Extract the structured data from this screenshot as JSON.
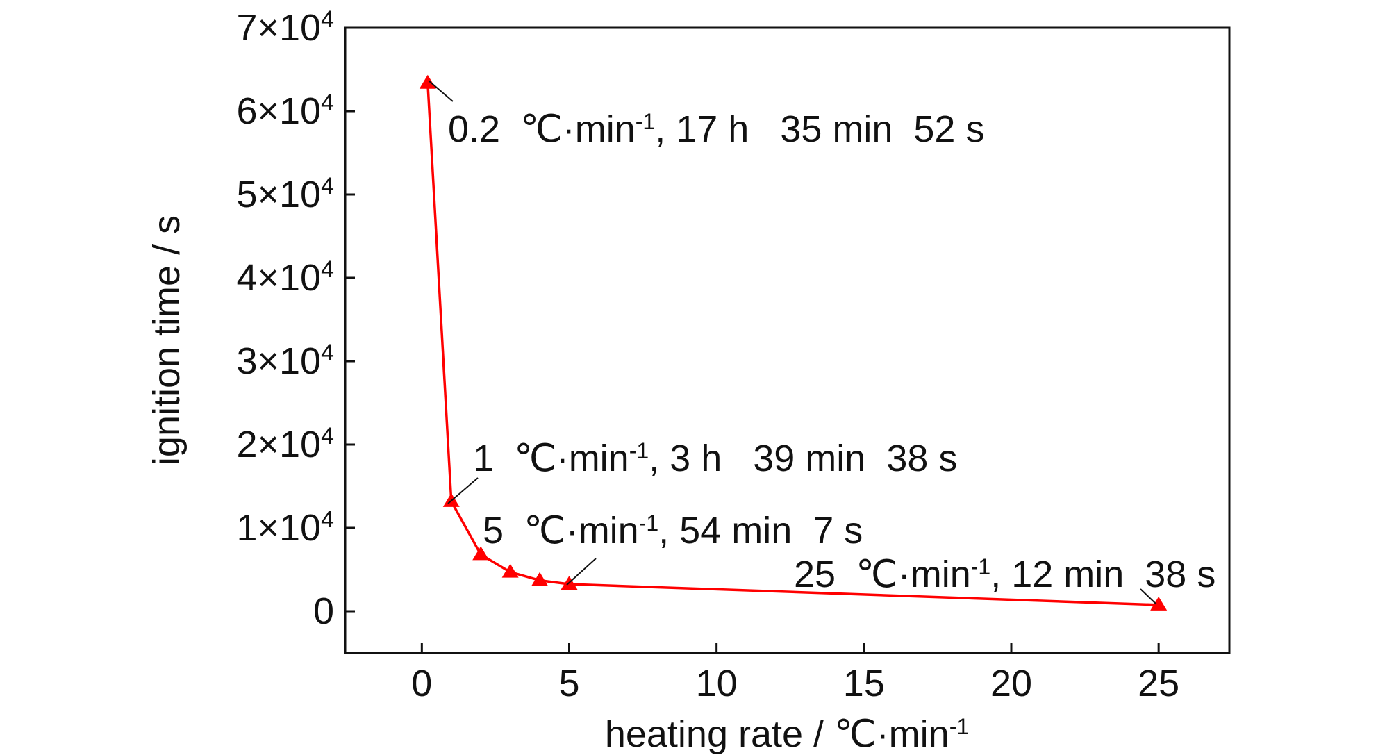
{
  "chart_data": {
    "type": "line",
    "xlabel": "heating rate / ℃·min",
    "xlabel_sup": "-1",
    "ylabel": "ignition time / s",
    "xlim": [
      -2.6,
      27.4
    ],
    "ylim": [
      -5000,
      70000
    ],
    "xticks": [
      0,
      5,
      10,
      15,
      20,
      25
    ],
    "yticks": [
      {
        "value": 0,
        "mantissa": "0",
        "exp": ""
      },
      {
        "value": 10000,
        "mantissa": "1×10",
        "exp": "4"
      },
      {
        "value": 20000,
        "mantissa": "2×10",
        "exp": "4"
      },
      {
        "value": 30000,
        "mantissa": "3×10",
        "exp": "4"
      },
      {
        "value": 40000,
        "mantissa": "4×10",
        "exp": "4"
      },
      {
        "value": 50000,
        "mantissa": "5×10",
        "exp": "4"
      },
      {
        "value": 60000,
        "mantissa": "6×10",
        "exp": "4"
      },
      {
        "value": 70000,
        "mantissa": "7×10",
        "exp": "4"
      }
    ],
    "grid": false,
    "series": [
      {
        "color": "#ff0000",
        "marker": "triangle",
        "x": [
          0.2,
          1,
          2,
          3,
          4,
          5,
          25
        ],
        "y": [
          63352,
          13178,
          6800,
          4700,
          3700,
          3247,
          758
        ]
      }
    ],
    "annotations": [
      {
        "rate": "0.2",
        "unit": "℃·min",
        "sup": "-1",
        "time": ", 17 h   35 min  52 s"
      },
      {
        "rate": "1",
        "unit": "℃·min",
        "sup": "-1",
        "time": ", 3 h   39 min  38 s"
      },
      {
        "rate": "5",
        "unit": "℃·min",
        "sup": "-1",
        "time": ", 54 min  7 s"
      },
      {
        "rate": "25",
        "unit": "℃·min",
        "sup": "-1",
        "time": ", 12 min  38 s"
      }
    ]
  }
}
